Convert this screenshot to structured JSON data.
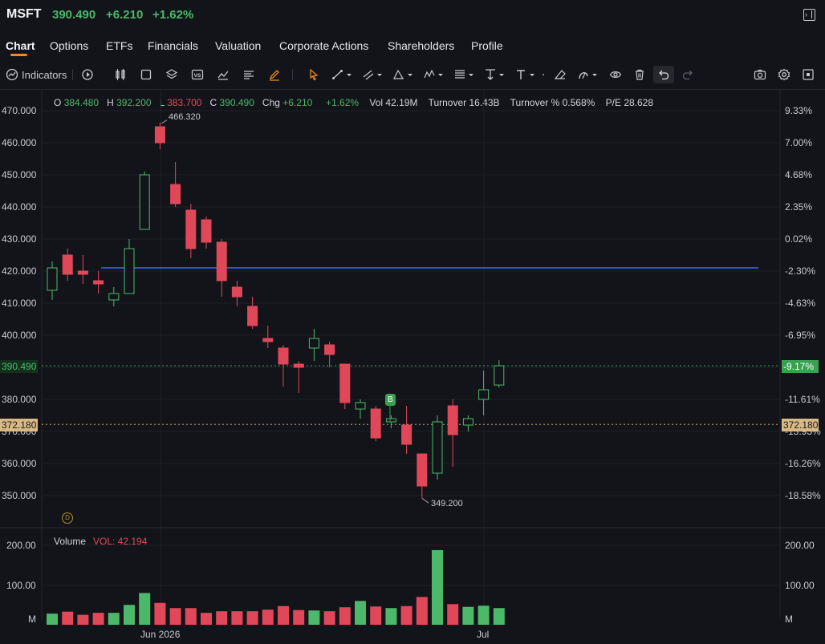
{
  "header": {
    "symbol": "MSFT",
    "price": "390.490",
    "change": "+6.210",
    "change_pct": "+1.62%"
  },
  "tabs": [
    "Chart",
    "Options",
    "ETFs",
    "Financials",
    "Valuation",
    "Corporate Actions",
    "Shareholders",
    "Profile"
  ],
  "toolbar": {
    "indicators_label": "Indicators"
  },
  "ohlc": {
    "o_label": "O",
    "o": "384.480",
    "h_label": "H",
    "h": "392.200",
    "l_label": "L",
    "l": "383.700",
    "c_label": "C",
    "c": "390.490",
    "chg_label": "Chg",
    "chg": "+6.210",
    "chg_pct": "+1.62%",
    "vol_label": "Vol",
    "vol": "42.19M",
    "turnover_label": "Turnover",
    "turnover": "16.43B",
    "turnover_pct_label": "Turnover %",
    "turnover_pct": "0.568%",
    "pe_label": "P/E",
    "pe": "28.628"
  },
  "price_axis_left": [
    "470.000",
    "460.000",
    "450.000",
    "440.000",
    "430.000",
    "420.000",
    "410.000",
    "400.000",
    "380.000",
    "370.000",
    "360.000",
    "350.000"
  ],
  "price_axis_right": [
    "9.33%",
    "7.00%",
    "4.68%",
    "2.35%",
    "0.02%",
    "-2.30%",
    "-4.63%",
    "-6.95%",
    "-11.61%",
    "-13.93%",
    "-16.26%",
    "-18.58%"
  ],
  "current_price_tag": "390.490",
  "current_pct_tag": "-9.17%",
  "dotted_price_tag": "372.180",
  "high_marker": "466.320",
  "low_marker": "349.200",
  "buy_marker": "B",
  "dividend_marker": "D",
  "volume": {
    "label": "Volume",
    "vol_label": "VOL: 42.194",
    "axis": [
      "200.00",
      "100.00",
      "M"
    ]
  },
  "x_axis": [
    "Jun 2026",
    "Jul"
  ],
  "colors": {
    "up": "#4cb86a",
    "down": "#e0485a",
    "hline": "#3b6fe0",
    "accent": "#f08a25"
  },
  "chart_data": {
    "type": "candlestick",
    "ylim": [
      340,
      472
    ],
    "candles": [
      {
        "o": 414,
        "h": 423,
        "l": 411,
        "c": 421
      },
      {
        "o": 425,
        "h": 427,
        "l": 417,
        "c": 419
      },
      {
        "o": 420,
        "h": 425,
        "l": 416,
        "c": 419
      },
      {
        "o": 417,
        "h": 420,
        "l": 413,
        "c": 416
      },
      {
        "o": 411,
        "h": 415,
        "l": 409,
        "c": 413
      },
      {
        "o": 413,
        "h": 430,
        "l": 413,
        "c": 427
      },
      {
        "o": 433,
        "h": 451,
        "l": 433,
        "c": 450
      },
      {
        "o": 465,
        "h": 466.32,
        "l": 458,
        "c": 460
      },
      {
        "o": 447,
        "h": 454,
        "l": 440,
        "c": 441
      },
      {
        "o": 439,
        "h": 441,
        "l": 424,
        "c": 427
      },
      {
        "o": 436,
        "h": 437,
        "l": 427,
        "c": 429
      },
      {
        "o": 429,
        "h": 430,
        "l": 412,
        "c": 417
      },
      {
        "o": 415,
        "h": 417,
        "l": 409,
        "c": 412
      },
      {
        "o": 409,
        "h": 412,
        "l": 402,
        "c": 403
      },
      {
        "o": 399,
        "h": 403,
        "l": 396,
        "c": 398
      },
      {
        "o": 396,
        "h": 397,
        "l": 384,
        "c": 391
      },
      {
        "o": 391,
        "h": 392,
        "l": 382,
        "c": 390
      },
      {
        "o": 396,
        "h": 402,
        "l": 392,
        "c": 399
      },
      {
        "o": 397,
        "h": 398,
        "l": 390,
        "c": 394
      },
      {
        "o": 391,
        "h": 391,
        "l": 377,
        "c": 379
      },
      {
        "o": 377,
        "h": 380,
        "l": 374,
        "c": 379
      },
      {
        "o": 377,
        "h": 378,
        "l": 367,
        "c": 368
      },
      {
        "o": 373,
        "h": 375,
        "l": 371,
        "c": 374
      },
      {
        "o": 372,
        "h": 378,
        "l": 363,
        "c": 366
      },
      {
        "o": 363,
        "h": 363,
        "l": 349.2,
        "c": 353
      },
      {
        "o": 357,
        "h": 375,
        "l": 355,
        "c": 373
      },
      {
        "o": 378,
        "h": 380,
        "l": 359,
        "c": 369
      },
      {
        "o": 372,
        "h": 375,
        "l": 370,
        "c": 374
      },
      {
        "o": 380,
        "h": 389,
        "l": 375,
        "c": 383
      },
      {
        "o": 384.48,
        "h": 392.2,
        "l": 383.7,
        "c": 390.49
      }
    ],
    "volumes": [
      28,
      33,
      25,
      30,
      30,
      50,
      80,
      55,
      42,
      42,
      30,
      34,
      34,
      34,
      38,
      47,
      37,
      36,
      34,
      44,
      60,
      46,
      42,
      47,
      70,
      188,
      52,
      45,
      48,
      42
    ],
    "hline": 421,
    "current": 390.49,
    "dotted": 372.18
  }
}
